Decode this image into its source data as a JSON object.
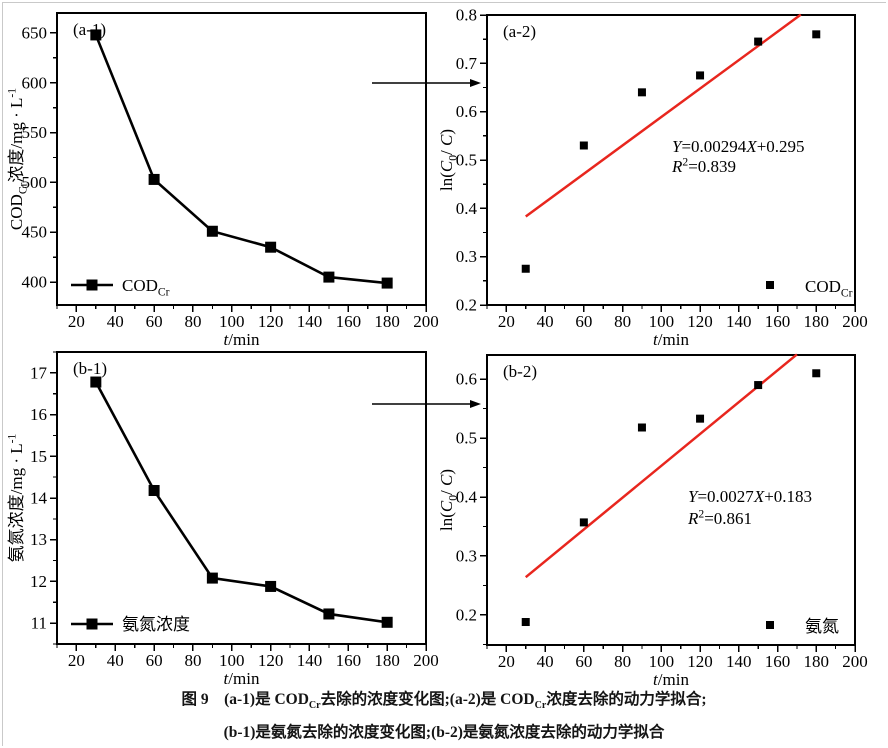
{
  "figure": {
    "caption": {
      "line1": [
        {
          "t": "图 9　(a-1)是 COD"
        },
        {
          "t": "Cr",
          "sub": true
        },
        {
          "t": "去除的浓度变化图;(a-2)是 COD"
        },
        {
          "t": "Cr",
          "sub": true
        },
        {
          "t": "浓度去除的动力学拟合;"
        }
      ],
      "line2": [
        {
          "t": "(b-1)是氨氮去除的浓度变化图;(b-2)是氨氮浓度去除的动力学拟合"
        }
      ]
    }
  },
  "connectors": [
    {
      "icon": "right-arrow-icon",
      "from": "(a-1)",
      "to": "(a-2)"
    },
    {
      "icon": "right-arrow-icon",
      "from": "(b-1)",
      "to": "(b-2)"
    }
  ],
  "colors": {
    "axis": "#000000",
    "data": "#000000",
    "fit_line": "#e8261e",
    "background": "#ffffff"
  },
  "chart_data": [
    {
      "id": "a1",
      "type": "line",
      "panel_label": "(a-1)",
      "x": [
        30,
        60,
        90,
        120,
        150,
        180
      ],
      "y": [
        648,
        503,
        451,
        435,
        405,
        399
      ],
      "xlabel_parts": [
        {
          "t": "t",
          "it": true
        },
        {
          "t": "/min"
        }
      ],
      "ylabel_parts": [
        {
          "t": "COD"
        },
        {
          "t": "Cr",
          "sub": true
        },
        {
          "t": "浓度/mg · L"
        },
        {
          "t": "-1",
          "sup": true
        }
      ],
      "xlim": [
        10,
        200
      ],
      "ylim": [
        377,
        670
      ],
      "xticks": [
        20,
        40,
        60,
        80,
        100,
        120,
        140,
        160,
        180,
        200
      ],
      "xtick_labels": [
        "20",
        "40",
        "60",
        "80",
        "100",
        "120",
        "140",
        "160",
        "180",
        "200"
      ],
      "yticks": [
        400,
        450,
        500,
        550,
        600,
        650
      ],
      "ytick_labels": [
        "400",
        "450",
        "500",
        "550",
        "600",
        "650"
      ],
      "x_minor_step": 10,
      "y_minor_step": 25,
      "marker": "filled-square",
      "legend": {
        "style": "line-marker",
        "position": "bottom-left",
        "label_parts": [
          {
            "t": "COD"
          },
          {
            "t": "Cr",
            "sub": true
          }
        ]
      }
    },
    {
      "id": "a2",
      "type": "scatter",
      "panel_label": "(a-2)",
      "x": [
        30,
        60,
        90,
        120,
        150,
        180
      ],
      "y": [
        0.275,
        0.53,
        0.64,
        0.675,
        0.745,
        0.76
      ],
      "fit": {
        "slope": 0.00294,
        "intercept": 0.295,
        "x_start": 30,
        "x_end": 172,
        "color": "#e8261e",
        "equation_parts": [
          {
            "t": "Y",
            "it": true
          },
          {
            "t": "=0.00294"
          },
          {
            "t": "X",
            "it": true
          },
          {
            "t": "+0.295"
          }
        ],
        "r2_parts": [
          {
            "t": "R",
            "it": true
          },
          {
            "t": "2",
            "sup": true
          },
          {
            "t": "=0.839"
          }
        ]
      },
      "xlabel_parts": [
        {
          "t": "t",
          "it": true
        },
        {
          "t": "/min"
        }
      ],
      "ylabel_parts": [
        {
          "t": "ln("
        },
        {
          "t": "C",
          "it": true
        },
        {
          "t": "0",
          "sub": true
        },
        {
          "t": "/ "
        },
        {
          "t": "C",
          "it": true
        },
        {
          "t": ")"
        }
      ],
      "xlim": [
        10,
        200
      ],
      "ylim": [
        0.2,
        0.8
      ],
      "xticks": [
        20,
        40,
        60,
        80,
        100,
        120,
        140,
        160,
        180,
        200
      ],
      "xtick_labels": [
        "20",
        "40",
        "60",
        "80",
        "100",
        "120",
        "140",
        "160",
        "180",
        "200"
      ],
      "yticks": [
        0.2,
        0.3,
        0.4,
        0.5,
        0.6,
        0.7,
        0.8
      ],
      "ytick_labels": [
        "0.2",
        "0.3",
        "0.4",
        "0.5",
        "0.6",
        "0.7",
        "0.8"
      ],
      "x_minor_step": 10,
      "y_minor_step": 0.05,
      "marker": "filled-square",
      "legend": {
        "style": "marker",
        "position": "bottom-right",
        "label_parts": [
          {
            "t": "COD"
          },
          {
            "t": "Cr",
            "sub": true
          }
        ]
      }
    },
    {
      "id": "b1",
      "type": "line",
      "panel_label": "(b-1)",
      "x": [
        30,
        60,
        90,
        120,
        150,
        180
      ],
      "y": [
        16.78,
        14.18,
        12.08,
        11.88,
        11.22,
        11.02
      ],
      "xlabel_parts": [
        {
          "t": "t",
          "it": true
        },
        {
          "t": "/min"
        }
      ],
      "ylabel_parts": [
        {
          "t": "氨氮浓度/mg · L"
        },
        {
          "t": "-1",
          "sup": true
        }
      ],
      "xlim": [
        10,
        200
      ],
      "ylim": [
        10.5,
        17.5
      ],
      "xticks": [
        20,
        40,
        60,
        80,
        100,
        120,
        140,
        160,
        180,
        200
      ],
      "xtick_labels": [
        "20",
        "40",
        "60",
        "80",
        "100",
        "120",
        "140",
        "160",
        "180",
        "200"
      ],
      "yticks": [
        11,
        12,
        13,
        14,
        15,
        16,
        17
      ],
      "ytick_labels": [
        "11",
        "12",
        "13",
        "14",
        "15",
        "16",
        "17"
      ],
      "x_minor_step": 10,
      "y_minor_step": 0.5,
      "marker": "filled-square",
      "legend": {
        "style": "line-marker",
        "position": "bottom-left",
        "label_parts": [
          {
            "t": "氨氮浓度"
          }
        ]
      }
    },
    {
      "id": "b2",
      "type": "scatter",
      "panel_label": "(b-2)",
      "x": [
        30,
        60,
        90,
        120,
        150,
        180
      ],
      "y": [
        0.188,
        0.357,
        0.518,
        0.533,
        0.59,
        0.61
      ],
      "fit": {
        "slope": 0.0027,
        "intercept": 0.183,
        "x_start": 30,
        "x_end": 170,
        "color": "#e8261e",
        "equation_parts": [
          {
            "t": "Y",
            "it": true
          },
          {
            "t": "=0.0027"
          },
          {
            "t": "X",
            "it": true
          },
          {
            "t": "+0.183"
          }
        ],
        "r2_parts": [
          {
            "t": "R",
            "it": true
          },
          {
            "t": "2",
            "sup": true
          },
          {
            "t": "=0.861"
          }
        ]
      },
      "xlabel_parts": [
        {
          "t": "t",
          "it": true
        },
        {
          "t": "/min"
        }
      ],
      "ylabel_parts": [
        {
          "t": "ln("
        },
        {
          "t": "C",
          "it": true
        },
        {
          "t": "0",
          "sub": true
        },
        {
          "t": "/ "
        },
        {
          "t": "C",
          "it": true
        },
        {
          "t": ")"
        }
      ],
      "xlim": [
        10,
        200
      ],
      "ylim": [
        0.149,
        0.641
      ],
      "xticks": [
        20,
        40,
        60,
        80,
        100,
        120,
        140,
        160,
        180,
        200
      ],
      "xtick_labels": [
        "20",
        "40",
        "60",
        "80",
        "100",
        "120",
        "140",
        "160",
        "180",
        "200"
      ],
      "yticks": [
        0.2,
        0.3,
        0.4,
        0.5,
        0.6
      ],
      "ytick_labels": [
        "0.2",
        "0.3",
        "0.4",
        "0.5",
        "0.6"
      ],
      "x_minor_step": 10,
      "y_minor_step": 0.05,
      "marker": "filled-square",
      "legend": {
        "style": "marker",
        "position": "bottom-right",
        "label_parts": [
          {
            "t": "氨氮"
          }
        ]
      }
    }
  ]
}
